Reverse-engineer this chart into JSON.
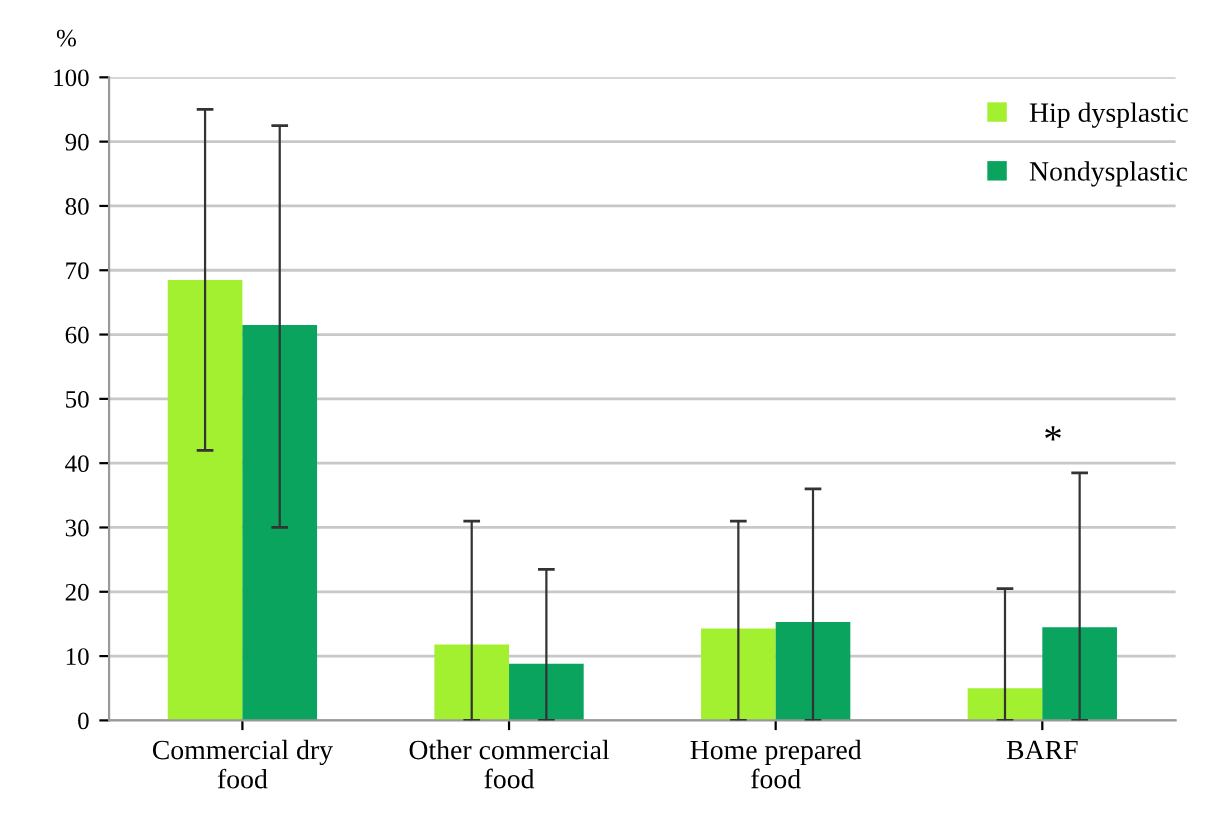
{
  "chart_data": {
    "type": "bar",
    "ylabel": "%",
    "categories": [
      "Commercial dry\nfood",
      "Other commercial\nfood",
      "Home prepared\nfood",
      "BARF"
    ],
    "series": [
      {
        "name": "Hip dysplastic",
        "color": "#a3f030",
        "values": [
          68.5,
          11.8,
          14.3,
          5
        ],
        "errors": [
          [
            42,
            95
          ],
          [
            0,
            31
          ],
          [
            0,
            31
          ],
          [
            0,
            20.5
          ]
        ]
      },
      {
        "name": "Nondysplastic",
        "color": "#0aa45e",
        "values": [
          61.5,
          8.8,
          15.3,
          14.5
        ],
        "errors": [
          [
            30,
            92.5
          ],
          [
            0,
            23.5
          ],
          [
            0,
            36
          ],
          [
            0,
            38.5
          ]
        ]
      }
    ],
    "ylim": [
      0,
      100
    ],
    "yticks": [
      0,
      10,
      20,
      30,
      40,
      50,
      60,
      70,
      80,
      90,
      100
    ],
    "grid": "y",
    "legend": "top right",
    "annotations": [
      "*"
    ]
  }
}
